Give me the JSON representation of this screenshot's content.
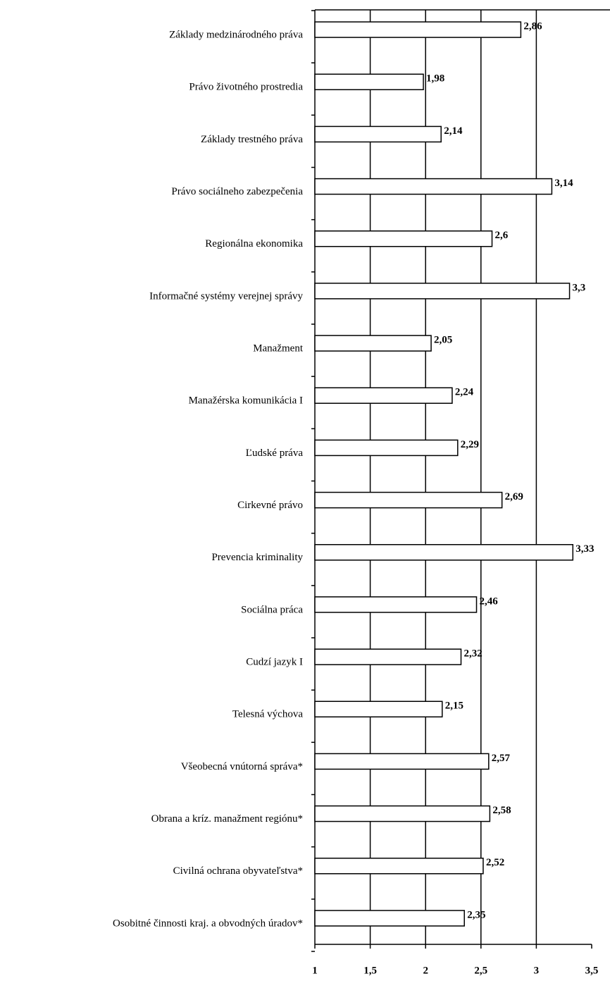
{
  "chart_data": {
    "type": "bar",
    "orientation": "horizontal",
    "categories": [
      "Základy medzinárodného práva",
      "Právo životného prostredia",
      "Základy trestného práva",
      "Právo sociálneho zabezpečenia",
      "Regionálna ekonomika",
      "Informačné systémy verejnej správy",
      "Manažment",
      "Manažérska komunikácia I",
      "Ľudské práva",
      "Cirkevné právo",
      "Prevencia kriminality",
      "Sociálna práca",
      "Cudzí jazyk I",
      "Telesná výchova",
      "Všeobecná vnútorná správa*",
      "Obrana a kríz. manažment regiónu*",
      "Civilná ochrana obyvateľstva*",
      "Osobitné činnosti kraj. a obvodných úradov*"
    ],
    "values": [
      2.86,
      1.98,
      2.14,
      3.14,
      2.6,
      3.3,
      2.05,
      2.24,
      2.29,
      2.69,
      3.33,
      2.46,
      2.32,
      2.15,
      2.57,
      2.58,
      2.52,
      2.35
    ],
    "value_labels": [
      "2,86",
      "1,98",
      "2,14",
      "3,14",
      "2,6",
      "3,3",
      "2,05",
      "2,24",
      "2,29",
      "2,69",
      "3,33",
      "2,46",
      "2,32",
      "2,15",
      "2,57",
      "2,58",
      "2,52",
      "2,35"
    ],
    "color": "#ffffff",
    "xlim": [
      1,
      3.5
    ],
    "xticks": [
      1,
      {
        "value": 1.5,
        "label": "1,5"
      },
      2,
      {
        "value": 2.5,
        "label": "2,5"
      },
      3,
      {
        "value": 3.5,
        "label": "3,5"
      }
    ],
    "grid": true
  }
}
